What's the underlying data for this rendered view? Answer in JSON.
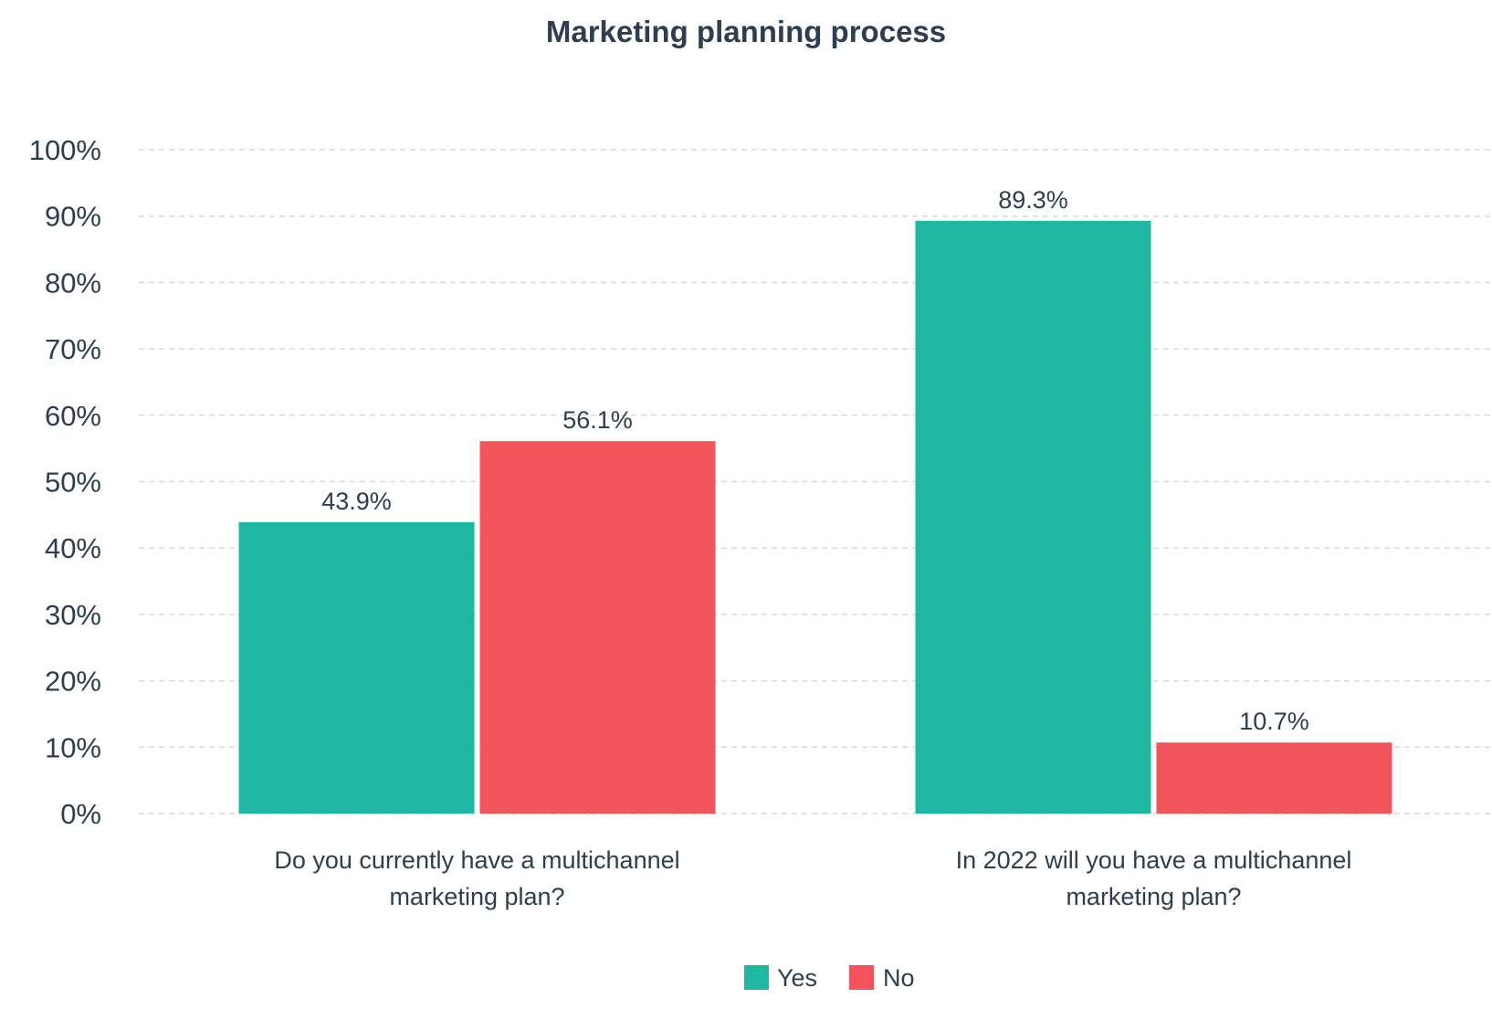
{
  "chart_data": {
    "type": "bar",
    "title": "Marketing planning process",
    "categories": [
      [
        "Do you currently have a multichannel",
        "marketing plan?"
      ],
      [
        "In 2022 will you have a multichannel",
        "marketing plan?"
      ]
    ],
    "series": [
      {
        "name": "Yes",
        "values": [
          43.9,
          89.3
        ],
        "labels": [
          "43.9%",
          "89.3%"
        ],
        "color": "#1fb7a1"
      },
      {
        "name": "No",
        "values": [
          56.1,
          10.7
        ],
        "labels": [
          "56.1%",
          "10.7%"
        ],
        "color": "#f2545b"
      }
    ],
    "ylim": [
      0,
      100
    ],
    "yticks": [
      {
        "value": 0,
        "label": "0%"
      },
      {
        "value": 10,
        "label": "10%"
      },
      {
        "value": 20,
        "label": "20%"
      },
      {
        "value": 30,
        "label": "30%"
      },
      {
        "value": 40,
        "label": "40%"
      },
      {
        "value": 50,
        "label": "50%"
      },
      {
        "value": 60,
        "label": "60%"
      },
      {
        "value": 70,
        "label": "70%"
      },
      {
        "value": 80,
        "label": "80%"
      },
      {
        "value": 90,
        "label": "90%"
      },
      {
        "value": 100,
        "label": "100%"
      }
    ],
    "grid": true,
    "grid_style": "dashed",
    "legend": "bottom-center"
  }
}
